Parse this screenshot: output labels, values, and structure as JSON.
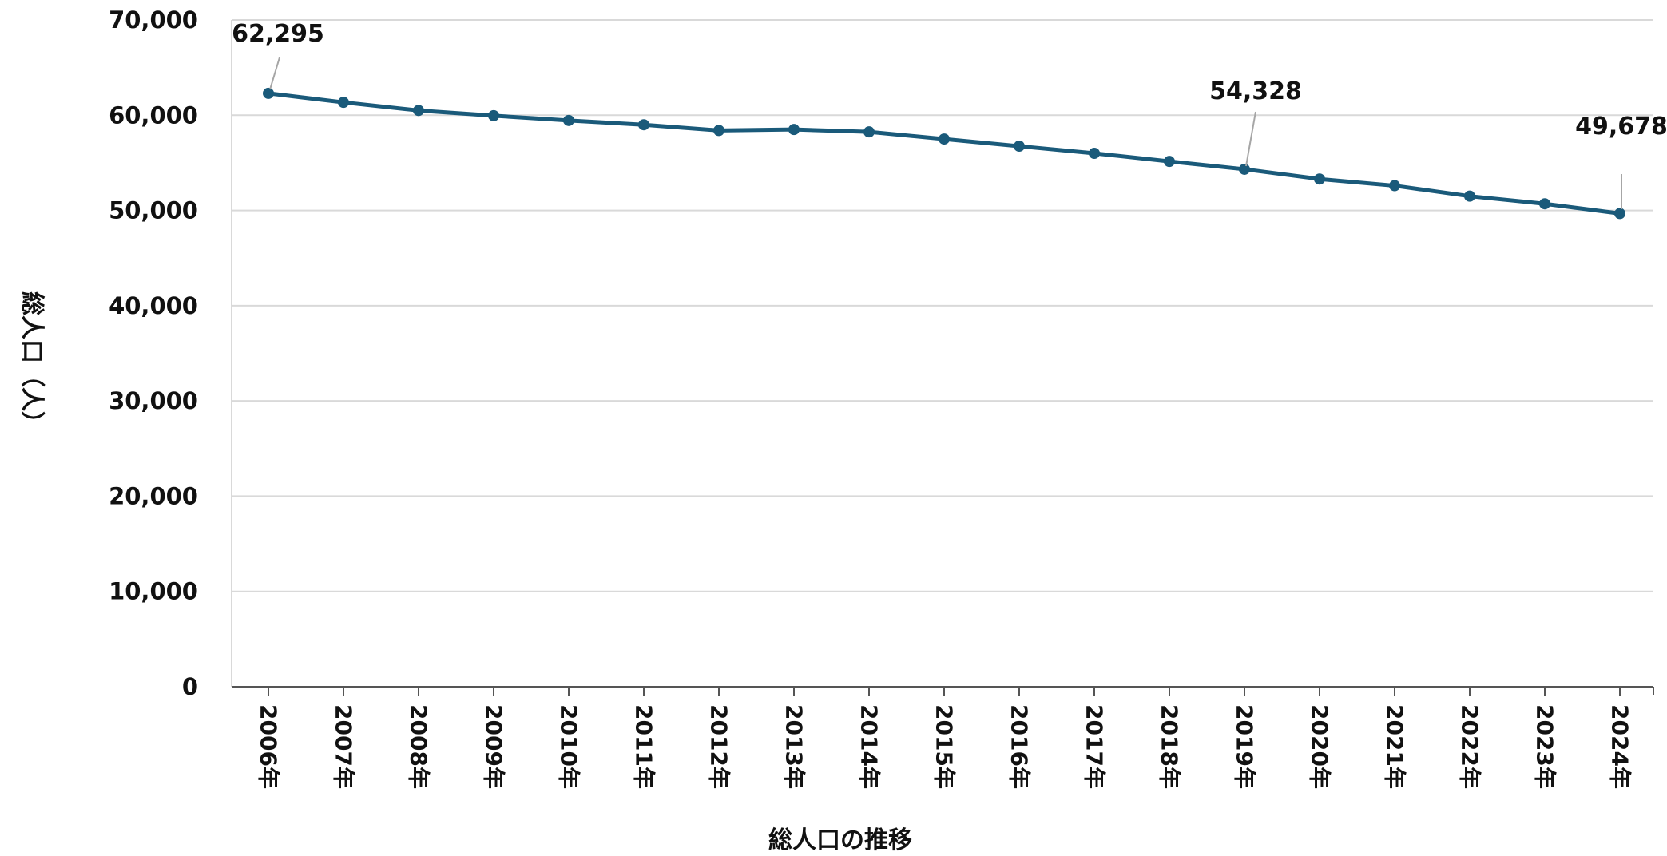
{
  "colors": {
    "series": "#1a5a7a",
    "grid": "#d9d9d9",
    "axis": "#555555",
    "leader": "#a6a6a6"
  },
  "chart_data": {
    "type": "line",
    "title": "",
    "xlabel": "総人口の推移",
    "ylabel": "総人口（人）",
    "ylim": [
      0,
      70000
    ],
    "yticks": [
      0,
      10000,
      20000,
      30000,
      40000,
      50000,
      60000,
      70000
    ],
    "ytick_labels": [
      "0",
      "10,000",
      "20,000",
      "30,000",
      "40,000",
      "50,000",
      "60,000",
      "70,000"
    ],
    "grid": true,
    "legend": "none",
    "categories": [
      "2006年",
      "2007年",
      "2008年",
      "2009年",
      "2010年",
      "2011年",
      "2012年",
      "2013年",
      "2014年",
      "2015年",
      "2016年",
      "2017年",
      "2018年",
      "2019年",
      "2020年",
      "2021年",
      "2022年",
      "2023年",
      "2024年"
    ],
    "series": [
      {
        "values": [
          62295,
          61350,
          60500,
          59950,
          59450,
          59000,
          58400,
          58500,
          58250,
          57500,
          56750,
          56000,
          55150,
          54328,
          53300,
          52600,
          51500,
          50700,
          49678
        ]
      }
    ],
    "data_labels": [
      {
        "index": 0,
        "text": "62,295"
      },
      {
        "index": 13,
        "text": "54,328"
      },
      {
        "index": 18,
        "text": "49,678"
      }
    ]
  }
}
